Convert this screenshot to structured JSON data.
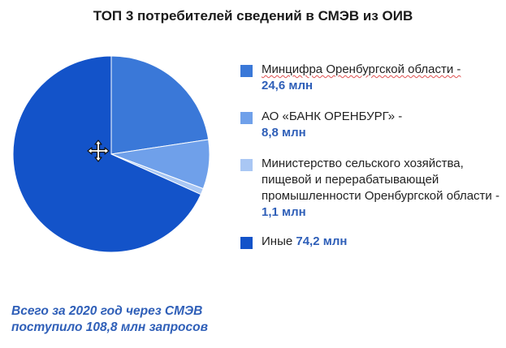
{
  "chart_data": {
    "type": "pie",
    "title": "ТОП 3 потребителей сведений в СМЭВ из ОИВ",
    "unit": "млн",
    "slices": [
      {
        "label": "Минцифра Оренбургской области -",
        "value_label": "24,6 млн",
        "value": 24.6,
        "color": "#3a78d8"
      },
      {
        "label": "АО «БАНК ОРЕНБУРГ» -",
        "value_label": "8,8 млн",
        "value": 8.8,
        "color": "#6fa0ea"
      },
      {
        "label": "Министерство сельского хозяйства, пищевой и перерабатывающей промышленности Оренбургской области -",
        "value_label": "1,1 млн",
        "value": 1.1,
        "color": "#a9c7f4"
      },
      {
        "label": "Иные",
        "value_label": "74,2 млн",
        "value": 74.2,
        "color": "#1353c9"
      }
    ]
  },
  "footer": {
    "line1": "Всего за 2020 год через СМЭВ",
    "line2": "поступило 108,8 млн запросов"
  },
  "cursor": {
    "icon": "move-cursor-icon"
  }
}
